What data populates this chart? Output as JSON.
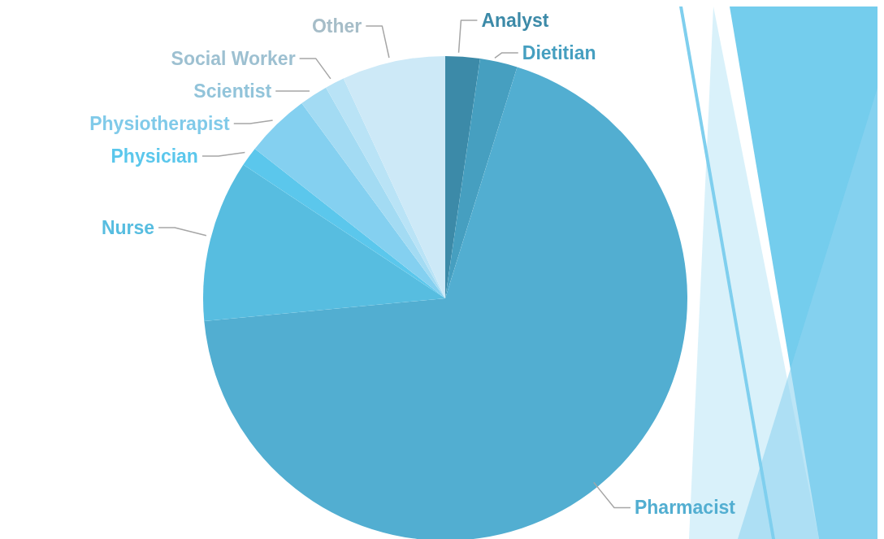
{
  "chart_data": {
    "type": "pie",
    "categories": [
      "Analyst",
      "Dietitian",
      "Pharmacist",
      "Nurse",
      "Physician",
      "Physiotherapist",
      "Scientist",
      "Social Worker",
      "Other"
    ],
    "values": [
      2.3,
      2.5,
      68.7,
      10.8,
      1.3,
      4.3,
      1.9,
      1.3,
      6.9
    ],
    "colors": [
      "#3c8aa8",
      "#469fc0",
      "#52aed1",
      "#57bde0",
      "#5bc7ec",
      "#84d0f0",
      "#a3dbf3",
      "#b9e3f6",
      "#cde9f7"
    ]
  }
}
